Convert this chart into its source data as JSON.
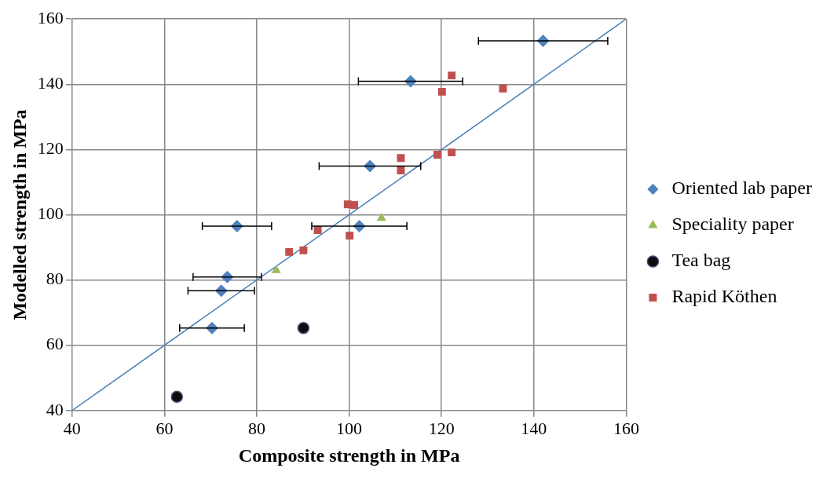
{
  "chart_data": {
    "type": "scatter",
    "xlabel": "Composite strength in MPa",
    "ylabel": "Modelled strength in MPa",
    "xlim": [
      40,
      160
    ],
    "ylim": [
      40,
      160
    ],
    "xticks": [
      40,
      60,
      80,
      100,
      120,
      140,
      160
    ],
    "yticks": [
      40,
      60,
      80,
      100,
      120,
      140,
      160
    ],
    "grid": true,
    "legend": "right",
    "series": [
      {
        "name": "Oriented lab paper",
        "color": "#4f81bd",
        "marker": "diamond",
        "x": [
          142,
          113.3,
          104.5,
          102.2,
          75.7,
          73.6,
          72.3,
          70.3
        ],
        "values": [
          153.3,
          140.9,
          114.9,
          96.5,
          96.5,
          80.9,
          76.7,
          65.3
        ],
        "xerrors": [
          14,
          11.3,
          11,
          10.3,
          7.5,
          7.4,
          7.2,
          7
        ]
      },
      {
        "name": "Speciality paper",
        "color": "#9bbb59",
        "marker": "triangle",
        "x": [
          84.2,
          107
        ],
        "values": [
          83,
          99
        ]
      },
      {
        "name": "Tea bag",
        "color": "#0d0d0d",
        "marker": "circle",
        "x": [
          90.1,
          62.7
        ],
        "values": [
          65.3,
          44.2
        ]
      },
      {
        "name": "Rapid Köthen",
        "color": "#c0504d",
        "marker": "square",
        "x": [
          122.2,
          120.1,
          133.3,
          111.2,
          111.2,
          119.1,
          122.2,
          99.7,
          101.1,
          93.2,
          100.1,
          87,
          90.1
        ],
        "values": [
          142.7,
          137.7,
          138.7,
          117.4,
          113.6,
          118.4,
          119.1,
          103.2,
          103,
          95.3,
          93.6,
          88.6,
          89.1
        ]
      },
      {
        "type": "line",
        "color": "#4a7ebb",
        "marker": "none",
        "line_style": "solid",
        "x": [
          40,
          160
        ],
        "values": [
          40,
          160
        ]
      }
    ]
  }
}
